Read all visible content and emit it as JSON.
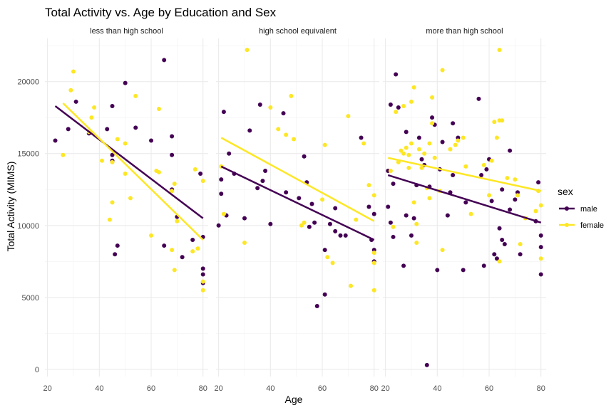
{
  "chart_data": {
    "type": "scatter",
    "title": "Total Activity vs. Age by Education and Sex",
    "xlabel": "Age",
    "ylabel": "Total Activity (MIMS)",
    "xlim": [
      19,
      82
    ],
    "ylim": [
      -500,
      23000
    ],
    "x_ticks": [
      20,
      40,
      60,
      80
    ],
    "y_ticks": [
      0,
      5000,
      10000,
      15000,
      20000
    ],
    "grid": true,
    "legend": {
      "title": "sex",
      "position": "right"
    },
    "colors": {
      "male": "#440154",
      "female": "#fde725"
    },
    "panels": [
      {
        "label": "less than high school",
        "series": [
          {
            "name": "male",
            "points": [
              [
                23,
                15900
              ],
              [
                28,
                16700
              ],
              [
                31,
                18600
              ],
              [
                36,
                16400
              ],
              [
                43,
                16700
              ],
              [
                45,
                14900
              ],
              [
                45,
                14500
              ],
              [
                45,
                18300
              ],
              [
                46,
                8000
              ],
              [
                47,
                8600
              ],
              [
                50,
                19900
              ],
              [
                54,
                16800
              ],
              [
                60,
                15900
              ],
              [
                65,
                21500
              ],
              [
                65,
                8600
              ],
              [
                68,
                16200
              ],
              [
                68,
                14900
              ],
              [
                68,
                12500
              ],
              [
                70,
                10600
              ],
              [
                72,
                7800
              ],
              [
                76,
                9000
              ],
              [
                79,
                13600
              ],
              [
                80,
                9200
              ],
              [
                80,
                7000
              ],
              [
                80,
                6600
              ],
              [
                80,
                6000
              ]
            ],
            "trend": [
              [
                23,
                18300
              ],
              [
                80,
                10500
              ]
            ]
          },
          {
            "name": "female",
            "points": [
              [
                26,
                14900
              ],
              [
                29,
                19400
              ],
              [
                30,
                20700
              ],
              [
                36,
                16500
              ],
              [
                37,
                17500
              ],
              [
                38,
                18200
              ],
              [
                41,
                14500
              ],
              [
                44,
                10400
              ],
              [
                45,
                14400
              ],
              [
                45,
                11600
              ],
              [
                47,
                16000
              ],
              [
                50,
                15700
              ],
              [
                50,
                13600
              ],
              [
                52,
                11900
              ],
              [
                54,
                19000
              ],
              [
                60,
                9300
              ],
              [
                62,
                13800
              ],
              [
                63,
                18100
              ],
              [
                63,
                13700
              ],
              [
                68,
                12400
              ],
              [
                68,
                8300
              ],
              [
                69,
                6900
              ],
              [
                69,
                12900
              ],
              [
                70,
                10300
              ],
              [
                76,
                8200
              ],
              [
                77,
                13900
              ],
              [
                78,
                8400
              ],
              [
                80,
                13100
              ],
              [
                80,
                6100
              ],
              [
                80,
                5500
              ]
            ],
            "trend": [
              [
                26,
                18500
              ],
              [
                80,
                9000
              ]
            ]
          }
        ]
      },
      {
        "label": "high school equivalent",
        "series": [
          {
            "name": "male",
            "points": [
              [
                20,
                10000
              ],
              [
                21,
                13200
              ],
              [
                21,
                12200
              ],
              [
                22,
                17900
              ],
              [
                23,
                10700
              ],
              [
                24,
                15000
              ],
              [
                26,
                13600
              ],
              [
                30,
                10500
              ],
              [
                32,
                16600
              ],
              [
                35,
                12600
              ],
              [
                36,
                18400
              ],
              [
                37,
                13100
              ],
              [
                38,
                13800
              ],
              [
                40,
                10100
              ],
              [
                45,
                17800
              ],
              [
                46,
                12300
              ],
              [
                51,
                11900
              ],
              [
                53,
                14800
              ],
              [
                54,
                13000
              ],
              [
                55,
                9900
              ],
              [
                56,
                11500
              ],
              [
                57,
                10200
              ],
              [
                58,
                4400
              ],
              [
                61,
                8300
              ],
              [
                61,
                5200
              ],
              [
                63,
                10100
              ],
              [
                65,
                11200
              ],
              [
                65,
                9600
              ],
              [
                67,
                9300
              ],
              [
                69,
                9300
              ],
              [
                75,
                16100
              ],
              [
                78,
                11300
              ],
              [
                79,
                9000
              ],
              [
                80,
                8300
              ],
              [
                80,
                7500
              ],
              [
                80,
                10800
              ]
            ],
            "trend": [
              [
                21,
                14100
              ],
              [
                80,
                9000
              ]
            ]
          },
          {
            "name": "female",
            "points": [
              [
                21,
                14100
              ],
              [
                22,
                10800
              ],
              [
                30,
                8800
              ],
              [
                31,
                22200
              ],
              [
                40,
                18200
              ],
              [
                43,
                16700
              ],
              [
                46,
                16300
              ],
              [
                48,
                19000
              ],
              [
                49,
                16000
              ],
              [
                52,
                10000
              ],
              [
                53,
                10200
              ],
              [
                60,
                11800
              ],
              [
                61,
                15600
              ],
              [
                62,
                7800
              ],
              [
                64,
                7400
              ],
              [
                70,
                17600
              ],
              [
                71,
                5800
              ],
              [
                73,
                10400
              ],
              [
                76,
                15700
              ],
              [
                78,
                12800
              ],
              [
                80,
                12100
              ],
              [
                80,
                8100
              ],
              [
                80,
                7400
              ],
              [
                80,
                5500
              ]
            ],
            "trend": [
              [
                21,
                16100
              ],
              [
                80,
                10300
              ]
            ]
          }
        ]
      },
      {
        "label": "more than high school",
        "series": [
          {
            "name": "male",
            "points": [
              [
                21,
                11300
              ],
              [
                21,
                13800
              ],
              [
                22,
                18400
              ],
              [
                22,
                10200
              ],
              [
                23,
                12900
              ],
              [
                23,
                9200
              ],
              [
                24,
                20500
              ],
              [
                25,
                18200
              ],
              [
                27,
                7200
              ],
              [
                28,
                16500
              ],
              [
                28,
                10700
              ],
              [
                30,
                9300
              ],
              [
                31,
                10500
              ],
              [
                32,
                12800
              ],
              [
                33,
                16100
              ],
              [
                34,
                14600
              ],
              [
                35,
                14200
              ],
              [
                36,
                300
              ],
              [
                37,
                12700
              ],
              [
                38,
                17500
              ],
              [
                39,
                17000
              ],
              [
                40,
                6900
              ],
              [
                41,
                13900
              ],
              [
                42,
                15800
              ],
              [
                44,
                10700
              ],
              [
                45,
                12300
              ],
              [
                46,
                13500
              ],
              [
                46,
                17100
              ],
              [
                48,
                16100
              ],
              [
                50,
                6900
              ],
              [
                51,
                11600
              ],
              [
                56,
                18800
              ],
              [
                57,
                13500
              ],
              [
                58,
                7200
              ],
              [
                59,
                13900
              ],
              [
                60,
                14600
              ],
              [
                61,
                11700
              ],
              [
                62,
                8000
              ],
              [
                63,
                7700
              ],
              [
                64,
                9800
              ],
              [
                65,
                12500
              ],
              [
                65,
                9000
              ],
              [
                66,
                8700
              ],
              [
                68,
                15200
              ],
              [
                68,
                11100
              ],
              [
                70,
                11800
              ],
              [
                71,
                12300
              ],
              [
                72,
                8000
              ],
              [
                78,
                10300
              ],
              [
                79,
                13000
              ],
              [
                80,
                9300
              ],
              [
                80,
                8500
              ],
              [
                80,
                6600
              ]
            ],
            "trend": [
              [
                21,
                13500
              ],
              [
                80,
                10200
              ]
            ]
          },
          {
            "name": "female",
            "points": [
              [
                22,
                13800
              ],
              [
                23,
                9900
              ],
              [
                24,
                17900
              ],
              [
                25,
                14400
              ],
              [
                26,
                15200
              ],
              [
                27,
                18300
              ],
              [
                27,
                15000
              ],
              [
                28,
                15400
              ],
              [
                29,
                14000
              ],
              [
                29,
                14900
              ],
              [
                30,
                18600
              ],
              [
                30,
                15700
              ],
              [
                31,
                19600
              ],
              [
                31,
                11600
              ],
              [
                32,
                10100
              ],
              [
                32,
                8800
              ],
              [
                33,
                15300
              ],
              [
                34,
                14000
              ],
              [
                35,
                15000
              ],
              [
                36,
                12600
              ],
              [
                37,
                11900
              ],
              [
                37,
                15700
              ],
              [
                38,
                18900
              ],
              [
                38,
                17100
              ],
              [
                39,
                14700
              ],
              [
                41,
                12400
              ],
              [
                42,
                20800
              ],
              [
                42,
                8300
              ],
              [
                45,
                15300
              ],
              [
                47,
                15600
              ],
              [
                48,
                15900
              ],
              [
                50,
                16100
              ],
              [
                51,
                14100
              ],
              [
                53,
                10800
              ],
              [
                58,
                14200
              ],
              [
                60,
                12100
              ],
              [
                61,
                14500
              ],
              [
                62,
                17200
              ],
              [
                63,
                16100
              ],
              [
                64,
                17300
              ],
              [
                64,
                22200
              ],
              [
                64,
                7500
              ],
              [
                65,
                17300
              ],
              [
                67,
                13300
              ],
              [
                70,
                13200
              ],
              [
                71,
                12100
              ],
              [
                72,
                8700
              ],
              [
                74,
                10500
              ],
              [
                78,
                11000
              ],
              [
                79,
                12400
              ],
              [
                80,
                11400
              ],
              [
                80,
                7700
              ]
            ],
            "trend": [
              [
                21,
                14700
              ],
              [
                80,
                12400
              ]
            ]
          }
        ]
      }
    ]
  }
}
